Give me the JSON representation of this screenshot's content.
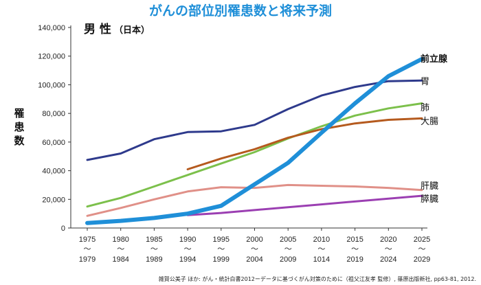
{
  "chart_data": {
    "type": "line",
    "title": "がんの部位別罹患数と将来予測",
    "subtitle_main": "男 性",
    "subtitle_sub": "（日本）",
    "ylabel": "罹患数",
    "ylim": [
      0,
      140000
    ],
    "yticks": [
      "0",
      "20,000",
      "40,000",
      "60,000",
      "80,000",
      "100,000",
      "120,000",
      "140,000"
    ],
    "ytick_values": [
      0,
      20000,
      40000,
      60000,
      80000,
      100000,
      120000,
      140000
    ],
    "categories": [
      {
        "top": "1975",
        "mid": "〜",
        "bottom": "1979"
      },
      {
        "top": "1980",
        "mid": "〜",
        "bottom": "1984"
      },
      {
        "top": "1985",
        "mid": "〜",
        "bottom": "1989"
      },
      {
        "top": "1990",
        "mid": "〜",
        "bottom": "1994"
      },
      {
        "top": "1995",
        "mid": "〜",
        "bottom": "1999"
      },
      {
        "top": "2000",
        "mid": "〜",
        "bottom": "2004"
      },
      {
        "top": "2005",
        "mid": "〜",
        "bottom": "2009"
      },
      {
        "top": "2010",
        "mid": "〜",
        "bottom": "1014"
      },
      {
        "top": "2015",
        "mid": "〜",
        "bottom": "2019"
      },
      {
        "top": "2020",
        "mid": "〜",
        "bottom": "2024"
      },
      {
        "top": "2025",
        "mid": "〜",
        "bottom": "2029"
      }
    ],
    "series": [
      {
        "name": "胃",
        "color": "#2e3a8c",
        "width": 3,
        "values": [
          47500,
          52000,
          62000,
          67000,
          67500,
          72000,
          83000,
          92500,
          98500,
          102500,
          103000
        ]
      },
      {
        "name": "肺",
        "color": "#7cc04b",
        "width": 3,
        "values": [
          15000,
          21000,
          29000,
          37000,
          45000,
          53000,
          62500,
          71000,
          78500,
          83500,
          87000
        ]
      },
      {
        "name": "大腸",
        "color": "#b55a1e",
        "width": 3,
        "values": [
          null,
          null,
          null,
          41000,
          48500,
          55000,
          63000,
          69000,
          73000,
          75500,
          76500
        ]
      },
      {
        "name": "肝臓",
        "color": "#e09088",
        "width": 3,
        "values": [
          8500,
          14000,
          20000,
          25500,
          28500,
          28000,
          30000,
          29500,
          29000,
          28000,
          26500
        ]
      },
      {
        "name": "膵臓",
        "color": "#9b3fb2",
        "width": 3,
        "values": [
          null,
          null,
          null,
          9000,
          10500,
          12500,
          14500,
          16500,
          18500,
          20500,
          22500
        ]
      },
      {
        "name": "前立腺",
        "color": "#1f8fd8",
        "width": 6,
        "values": [
          3500,
          5000,
          7000,
          10000,
          15500,
          30500,
          45500,
          66500,
          87000,
          106000,
          118000
        ]
      }
    ],
    "source": "雑賀公美子 ほか: がん・統計白書2012ーデータに基づくがん対策のために（祖父江友孝 監修）, 篠原出版新社, pp63-81, 2012."
  }
}
